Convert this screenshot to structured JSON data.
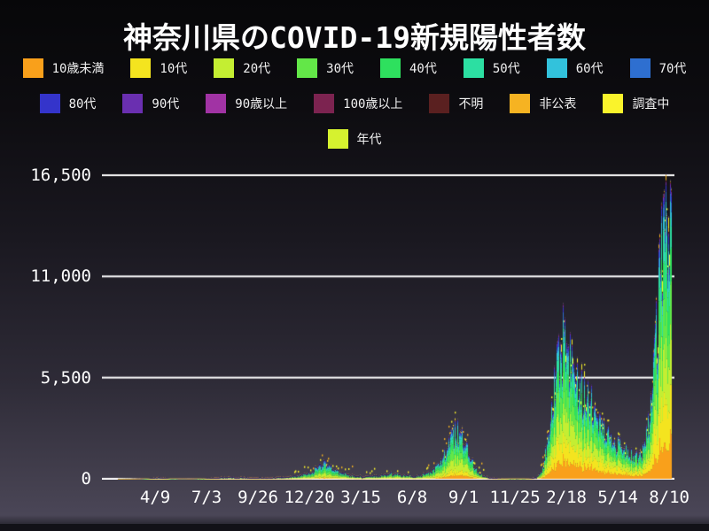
{
  "title": "神奈川県のCOVID-19新規陽性者数",
  "colors": {
    "background_top": "#070709",
    "background_bottom": "#4a4657",
    "grid": "#ffffff",
    "text": "#ffffff",
    "top_edge_cap": "#2f1f63",
    "dot_researching": "#faf32b",
    "dot_undisclosed": "#f6b322"
  },
  "legend": {
    "rows": [
      [
        {
          "key": "under10",
          "label": "10歳未満",
          "color": "#f9a01b"
        },
        {
          "key": "10s",
          "label": "10代",
          "color": "#f4e41f"
        },
        {
          "key": "20s",
          "label": "20代",
          "color": "#c4ee32"
        },
        {
          "key": "30s",
          "label": "30代",
          "color": "#63e748"
        },
        {
          "key": "40s",
          "label": "40代",
          "color": "#2ee05e"
        },
        {
          "key": "50s",
          "label": "50代",
          "color": "#2cdfa2"
        },
        {
          "key": "60s",
          "label": "60代",
          "color": "#32c2dc"
        },
        {
          "key": "70s",
          "label": "70代",
          "color": "#2e6fd0"
        }
      ],
      [
        {
          "key": "80s",
          "label": "80代",
          "color": "#3434cb"
        },
        {
          "key": "90s",
          "label": "90代",
          "color": "#6a2fb0"
        },
        {
          "key": "over90",
          "label": "90歳以上",
          "color": "#a133a4"
        },
        {
          "key": "over100",
          "label": "100歳以上",
          "color": "#7c2350"
        },
        {
          "key": "unknown",
          "label": "不明",
          "color": "#5a2020"
        },
        {
          "key": "undisclosed",
          "label": "非公表",
          "color": "#f6b322"
        },
        {
          "key": "researching",
          "label": "調査中",
          "color": "#faf32b"
        }
      ],
      [
        {
          "key": "age-group",
          "label": "年代",
          "color": "#d6f22f"
        }
      ]
    ]
  },
  "chart_data": {
    "type": "area",
    "stacked": true,
    "title": "神奈川県のCOVID-19新規陽性者数",
    "xlabel": "",
    "ylabel": "",
    "ylim": [
      0,
      16500
    ],
    "grid": "horizontal-white",
    "legend_position": "top",
    "y_ticks": [
      {
        "value": 0,
        "label": "0"
      },
      {
        "value": 5500,
        "label": "5,500"
      },
      {
        "value": 11000,
        "label": "11,000"
      },
      {
        "value": 16500,
        "label": "16,500"
      }
    ],
    "x_ticks": [
      {
        "day": 88,
        "label": "4/9"
      },
      {
        "day": 173,
        "label": "7/3"
      },
      {
        "day": 258,
        "label": "9/26"
      },
      {
        "day": 343,
        "label": "12/20"
      },
      {
        "day": 428,
        "label": "3/15"
      },
      {
        "day": 513,
        "label": "6/8"
      },
      {
        "day": 598,
        "label": "9/1"
      },
      {
        "day": 683,
        "label": "11/25"
      },
      {
        "day": 768,
        "label": "2/18"
      },
      {
        "day": 853,
        "label": "5/14"
      },
      {
        "day": 938,
        "label": "8/10"
      }
    ],
    "x_domain_days": [
      0,
      942
    ],
    "categories": [
      "10歳未満",
      "10代",
      "20代",
      "30代",
      "40代",
      "50代",
      "60代",
      "70代",
      "80代",
      "90代",
      "90歳以上",
      "100歳以上",
      "不明",
      "非公表",
      "調査中"
    ],
    "category_colors": [
      "#f9a01b",
      "#f4e41f",
      "#c4ee32",
      "#63e748",
      "#2ee05e",
      "#2cdfa2",
      "#32c2dc",
      "#2e6fd0",
      "#3434cb",
      "#6a2fb0",
      "#a133a4",
      "#7c2350",
      "#5a2020",
      "#f6b322",
      "#faf32b"
    ],
    "daily_total_samples": [
      [
        0,
        0
      ],
      [
        20,
        0
      ],
      [
        45,
        2
      ],
      [
        62,
        8
      ],
      [
        75,
        25
      ],
      [
        83,
        55
      ],
      [
        90,
        85
      ],
      [
        97,
        75
      ],
      [
        105,
        45
      ],
      [
        115,
        20
      ],
      [
        130,
        12
      ],
      [
        150,
        10
      ],
      [
        168,
        25
      ],
      [
        185,
        60
      ],
      [
        200,
        100
      ],
      [
        213,
        115
      ],
      [
        228,
        95
      ],
      [
        243,
        70
      ],
      [
        258,
        60
      ],
      [
        275,
        70
      ],
      [
        292,
        95
      ],
      [
        308,
        130
      ],
      [
        325,
        200
      ],
      [
        340,
        330
      ],
      [
        352,
        520
      ],
      [
        362,
        780
      ],
      [
        367,
        900
      ],
      [
        373,
        800
      ],
      [
        382,
        560
      ],
      [
        392,
        380
      ],
      [
        405,
        240
      ],
      [
        418,
        150
      ],
      [
        432,
        125
      ],
      [
        448,
        165
      ],
      [
        462,
        220
      ],
      [
        476,
        265
      ],
      [
        490,
        250
      ],
      [
        503,
        200
      ],
      [
        517,
        170
      ],
      [
        532,
        240
      ],
      [
        547,
        480
      ],
      [
        558,
        900
      ],
      [
        568,
        1500
      ],
      [
        578,
        2300
      ],
      [
        586,
        2800
      ],
      [
        593,
        2500
      ],
      [
        601,
        1900
      ],
      [
        610,
        1100
      ],
      [
        619,
        500
      ],
      [
        629,
        210
      ],
      [
        641,
        80
      ],
      [
        654,
        38
      ],
      [
        668,
        22
      ],
      [
        682,
        18
      ],
      [
        696,
        22
      ],
      [
        708,
        35
      ],
      [
        718,
        90
      ],
      [
        727,
        380
      ],
      [
        736,
        1700
      ],
      [
        744,
        3900
      ],
      [
        751,
        6200
      ],
      [
        758,
        7300
      ],
      [
        765,
        7000
      ],
      [
        772,
        6700
      ],
      [
        780,
        6100
      ],
      [
        788,
        5000
      ],
      [
        795,
        4300
      ],
      [
        802,
        4600
      ],
      [
        809,
        4100
      ],
      [
        816,
        3500
      ],
      [
        824,
        3000
      ],
      [
        833,
        2550
      ],
      [
        842,
        2150
      ],
      [
        852,
        1950
      ],
      [
        861,
        1700
      ],
      [
        870,
        1450
      ],
      [
        880,
        1250
      ],
      [
        888,
        1300
      ],
      [
        895,
        1650
      ],
      [
        901,
        2500
      ],
      [
        907,
        4100
      ],
      [
        913,
        6600
      ],
      [
        919,
        9800
      ],
      [
        925,
        12800
      ],
      [
        930,
        14600
      ],
      [
        934,
        14900
      ],
      [
        938,
        14100
      ],
      [
        942,
        13400
      ]
    ],
    "age_share_profiles": {
      "anchor_days": [
        120,
        550,
        800
      ],
      "shares": [
        [
          0.025,
          0.04,
          0.16,
          0.14,
          0.14,
          0.14,
          0.11,
          0.09,
          0.07,
          0.035,
          0.012,
          0.003,
          0.03,
          0.005,
          0.01
        ],
        [
          0.055,
          0.09,
          0.23,
          0.18,
          0.16,
          0.11,
          0.065,
          0.045,
          0.03,
          0.013,
          0.004,
          0.001,
          0.006,
          0.006,
          0.015
        ],
        [
          0.135,
          0.155,
          0.175,
          0.16,
          0.145,
          0.09,
          0.05,
          0.033,
          0.024,
          0.01,
          0.003,
          0.001,
          0.004,
          0.005,
          0.02
        ]
      ]
    }
  }
}
